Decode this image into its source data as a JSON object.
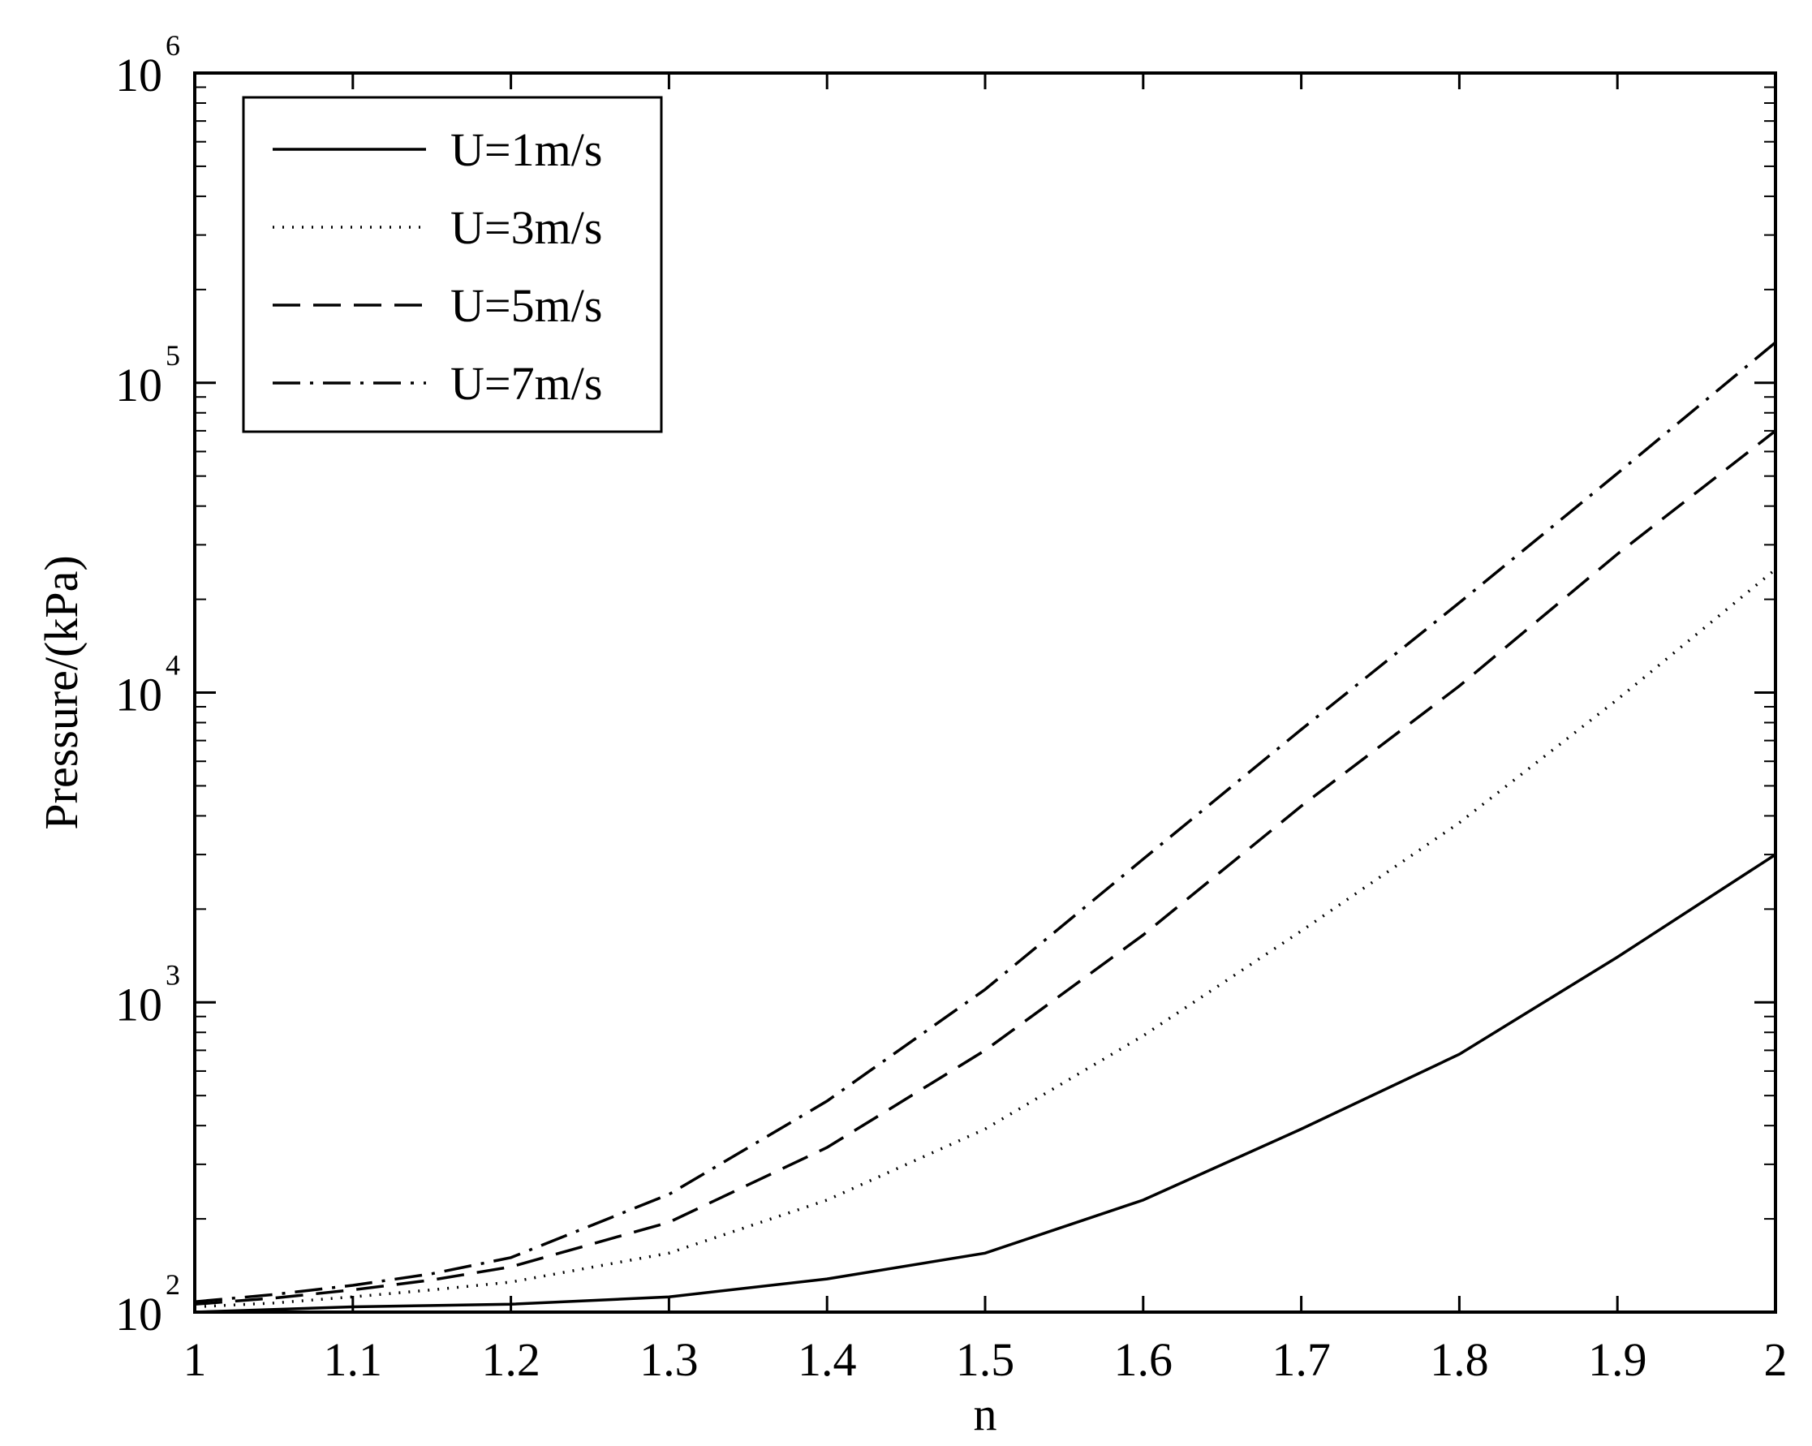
{
  "chart_data": {
    "type": "line",
    "xlabel": "n",
    "ylabel": "Pressure/(kPa)",
    "xlim": [
      1,
      2
    ],
    "ylim": [
      100,
      1000000
    ],
    "yscale": "log",
    "grid": false,
    "legend_position": "top-left",
    "x_ticks": [
      "1",
      "1.1",
      "1.2",
      "1.3",
      "1.4",
      "1.5",
      "1.6",
      "1.7",
      "1.8",
      "1.9",
      "2"
    ],
    "y_ticks": [
      {
        "value": 100,
        "base": "10",
        "exp": "2"
      },
      {
        "value": 1000,
        "base": "10",
        "exp": "3"
      },
      {
        "value": 10000,
        "base": "10",
        "exp": "4"
      },
      {
        "value": 100000,
        "base": "10",
        "exp": "5"
      },
      {
        "value": 1000000,
        "base": "10",
        "exp": "6"
      }
    ],
    "x": [
      1.0,
      1.05,
      1.1,
      1.15,
      1.2,
      1.3,
      1.4,
      1.5,
      1.6,
      1.7,
      1.8,
      1.9,
      2.0
    ],
    "series": [
      {
        "name": "U=1m/s",
        "style": "solid",
        "values": [
          100,
          102,
          104,
          105,
          106,
          112,
          128,
          155,
          230,
          390,
          680,
          1400,
          3000
        ]
      },
      {
        "name": "U=3m/s",
        "style": "dotted",
        "values": [
          104,
          107,
          112,
          118,
          125,
          155,
          230,
          390,
          780,
          1700,
          3800,
          9500,
          25000
        ]
      },
      {
        "name": "U=5m/s",
        "style": "dashed",
        "values": [
          106,
          111,
          118,
          127,
          140,
          195,
          340,
          700,
          1650,
          4300,
          10500,
          28000,
          70000
        ]
      },
      {
        "name": "U=7m/s",
        "style": "dashdot",
        "values": [
          108,
          114,
          122,
          133,
          150,
          240,
          480,
          1100,
          2900,
          7600,
          19500,
          51000,
          135000
        ]
      }
    ]
  }
}
